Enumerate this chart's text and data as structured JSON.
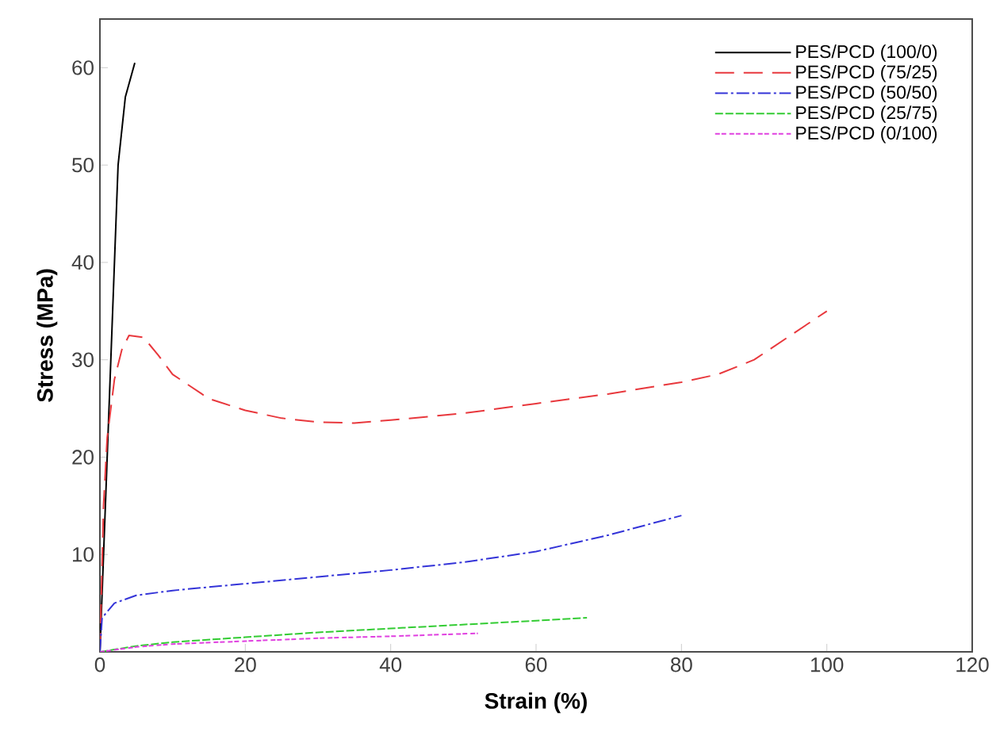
{
  "chart_data": {
    "type": "line",
    "xlabel": "Strain (%)",
    "ylabel": "Stress (MPa)",
    "xlim": [
      0,
      120
    ],
    "ylim": [
      0,
      65
    ],
    "xticks": [
      0,
      20,
      40,
      60,
      80,
      100,
      120
    ],
    "yticks": [
      10,
      20,
      30,
      40,
      50,
      60
    ],
    "legend": "top right",
    "grid": false,
    "marker": "none",
    "series": [
      {
        "name": "PES/PCD (100/0)",
        "color": "#000000",
        "line_style": "solid",
        "x": [
          0,
          1,
          2,
          2.5,
          3.5,
          4.8
        ],
        "values": [
          0,
          20,
          40,
          50,
          57,
          60.5
        ]
      },
      {
        "name": "PES/PCD (75/25)",
        "color": "#e8383d",
        "line_style": "dashed",
        "x": [
          0,
          0.5,
          1,
          2,
          3,
          4,
          6,
          8,
          10,
          15,
          20,
          25,
          30,
          35,
          40,
          50,
          60,
          70,
          80,
          85,
          90,
          95,
          100
        ],
        "values": [
          0,
          15,
          22,
          28,
          31,
          32.5,
          32.3,
          30.5,
          28.5,
          26,
          24.8,
          24,
          23.6,
          23.5,
          23.8,
          24.5,
          25.5,
          26.5,
          27.7,
          28.5,
          30,
          32.5,
          35
        ]
      },
      {
        "name": "PES/PCD (50/50)",
        "color": "#3434d8",
        "line_style": "dashed",
        "x": [
          0,
          0.3,
          2,
          5,
          10,
          20,
          30,
          40,
          50,
          60,
          70,
          80
        ],
        "values": [
          0,
          3.5,
          5,
          5.8,
          6.3,
          7,
          7.7,
          8.4,
          9.2,
          10.3,
          12,
          14
        ]
      },
      {
        "name": "PES/PCD (25/75)",
        "color": "#33cc33",
        "line_style": "dashed",
        "x": [
          0,
          5,
          10,
          20,
          30,
          40,
          50,
          60,
          67
        ],
        "values": [
          0,
          0.6,
          1,
          1.5,
          2,
          2.4,
          2.8,
          3.2,
          3.5
        ]
      },
      {
        "name": "PES/PCD (0/100)",
        "color": "#e040e0",
        "line_style": "dashed",
        "x": [
          0,
          5,
          10,
          20,
          30,
          40,
          52
        ],
        "values": [
          0,
          0.5,
          0.8,
          1.1,
          1.4,
          1.6,
          1.9
        ]
      }
    ]
  }
}
